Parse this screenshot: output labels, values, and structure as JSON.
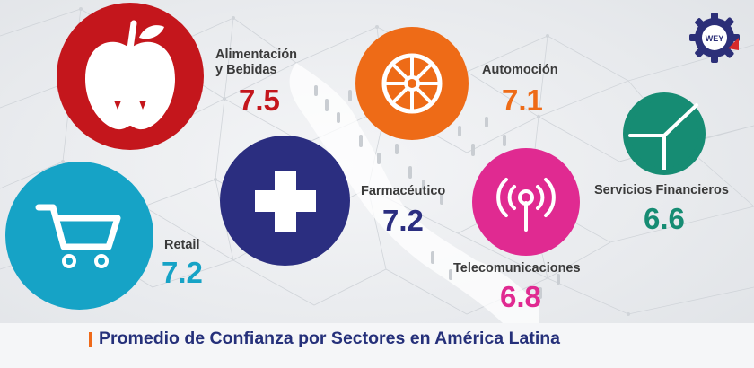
{
  "title": "Promedio de Confianza por Sectores en América Latina",
  "logo": {
    "text": "WEY",
    "name": "gear-logo"
  },
  "colors": {
    "food": "#c4161c",
    "automotive": "#ee6b17",
    "retail": "#16a3c6",
    "pharma": "#2b2e80",
    "telecom": "#e02a91",
    "finance": "#168c73",
    "footer_title": "#25307a",
    "accent": "#ef6a1a"
  },
  "sectors": [
    {
      "label_line1": "Alimentación",
      "label_line2": "y Bebidas",
      "value": "7.5",
      "icon": "apple-icon"
    },
    {
      "label_line1": "Automoción",
      "label_line2": "",
      "value": "7.1",
      "icon": "wheel-icon"
    },
    {
      "label_line1": "Retail",
      "label_line2": "",
      "value": "7.2",
      "icon": "shopping-cart-icon"
    },
    {
      "label_line1": "Farmacéutico",
      "label_line2": "",
      "value": "7.2",
      "icon": "medical-cross-icon"
    },
    {
      "label_line1": "Telecomunicaciones",
      "label_line2": "",
      "value": "6.8",
      "icon": "antenna-icon"
    },
    {
      "label_line1": "Servicios Financieros",
      "label_line2": "",
      "value": "6.6",
      "icon": "pie-chart-icon"
    }
  ]
}
